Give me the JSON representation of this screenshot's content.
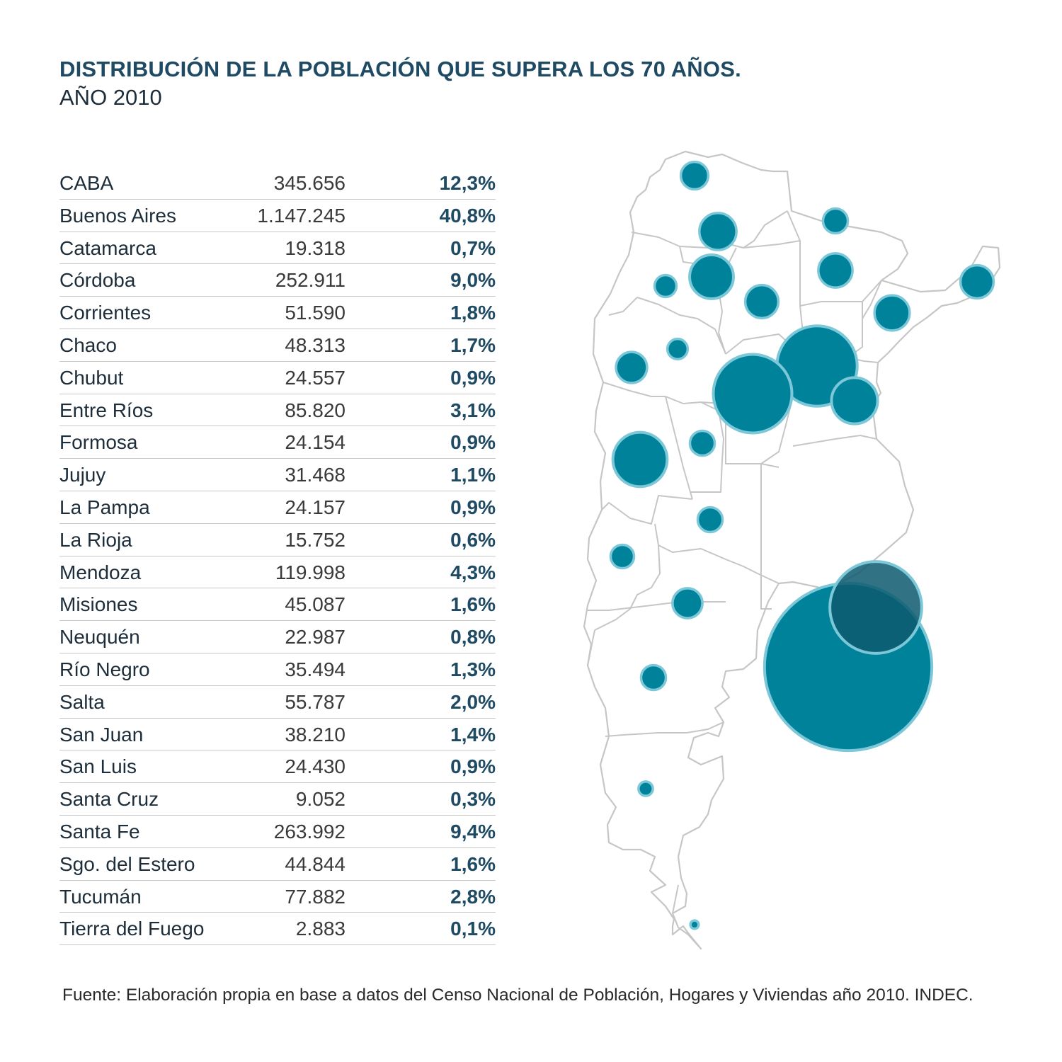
{
  "title": "DISTRIBUCIÓN DE LA POBLACIÓN QUE SUPERA LOS 70 AÑOS.",
  "subtitle": "AÑO 2010",
  "rows": [
    {
      "name": "CABA",
      "value": "345.656",
      "pct": "12,3%"
    },
    {
      "name": "Buenos Aires",
      "value": "1.147.245",
      "pct": "40,8%"
    },
    {
      "name": "Catamarca",
      "value": "19.318",
      "pct": "0,7%"
    },
    {
      "name": "Córdoba",
      "value": "252.911",
      "pct": "9,0%"
    },
    {
      "name": "Corrientes",
      "value": "51.590",
      "pct": "1,8%"
    },
    {
      "name": "Chaco",
      "value": "48.313",
      "pct": "1,7%"
    },
    {
      "name": "Chubut",
      "value": "24.557",
      "pct": "0,9%"
    },
    {
      "name": "Entre Ríos",
      "value": "85.820",
      "pct": "3,1%"
    },
    {
      "name": "Formosa",
      "value": "24.154",
      "pct": "0,9%"
    },
    {
      "name": "Jujuy",
      "value": "31.468",
      "pct": "1,1%"
    },
    {
      "name": "La Pampa",
      "value": "24.157",
      "pct": "0,9%"
    },
    {
      "name": "La Rioja",
      "value": "15.752",
      "pct": "0,6%"
    },
    {
      "name": "Mendoza",
      "value": "119.998",
      "pct": "4,3%"
    },
    {
      "name": "Misiones",
      "value": "45.087",
      "pct": "1,6%"
    },
    {
      "name": "Neuquén",
      "value": "22.987",
      "pct": "0,8%"
    },
    {
      "name": "Río Negro",
      "value": "35.494",
      "pct": "1,3%"
    },
    {
      "name": "Salta",
      "value": "55.787",
      "pct": "2,0%"
    },
    {
      "name": "San Juan",
      "value": "38.210",
      "pct": "1,4%"
    },
    {
      "name": "San Luis",
      "value": "24.430",
      "pct": "0,9%"
    },
    {
      "name": "Santa Cruz",
      "value": "9.052",
      "pct": "0,3%"
    },
    {
      "name": "Santa Fe",
      "value": "263.992",
      "pct": "9,4%"
    },
    {
      "name": "Sgo. del Estero",
      "value": "44.844",
      "pct": "1,6%"
    },
    {
      "name": "Tucumán",
      "value": "77.882",
      "pct": "2,8%"
    },
    {
      "name": "Tierra del Fuego",
      "value": "2.883",
      "pct": "0,1%"
    }
  ],
  "source": "Fuente: Elaboración propia en base a datos del Censo Nacional de Población, Hogares y Viviendas año 2010. INDEC.",
  "colors": {
    "title": "#1f4a63",
    "bubble_fill": "#00829b",
    "bubble_ring": "#7cc8d8",
    "bubble_overlap": "#0d5a6e",
    "map_stroke": "#c6c6c6"
  }
}
